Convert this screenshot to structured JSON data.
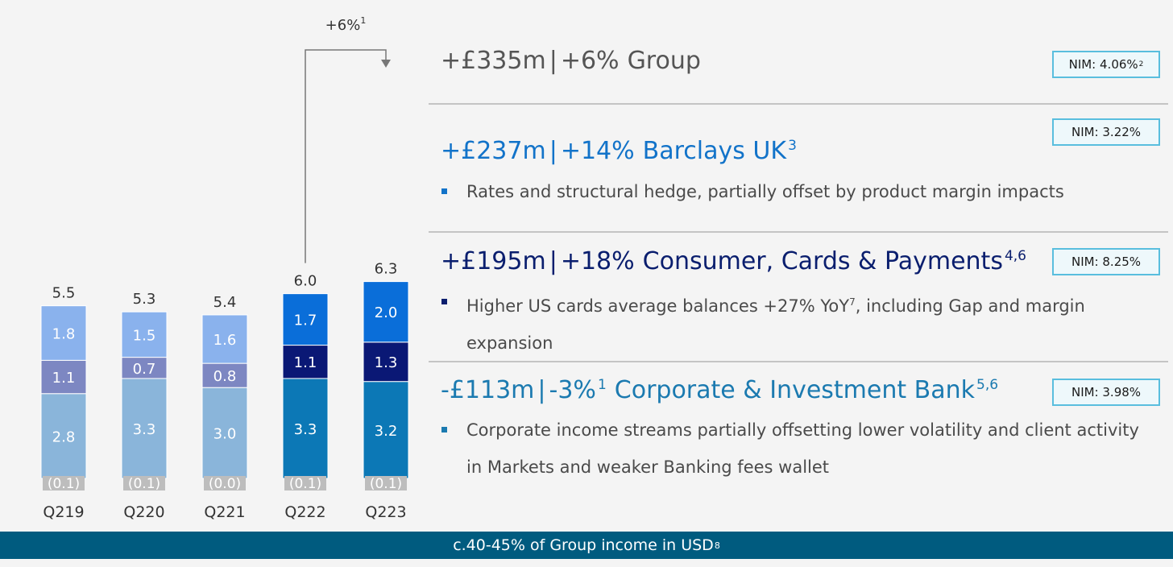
{
  "chart_data": {
    "type": "bar",
    "stacked": true,
    "categories": [
      "Q219",
      "Q220",
      "Q221",
      "Q222",
      "Q223"
    ],
    "totals": [
      "5.5",
      "5.3",
      "5.4",
      "6.0",
      "6.3"
    ],
    "bottom_labels": [
      "(0.1)",
      "(0.1)",
      "(0.0)",
      "(0.1)",
      "(0.1)"
    ],
    "series": [
      {
        "values": [
          2.8,
          3.3,
          3.0,
          3.3,
          3.2
        ],
        "labels": [
          "2.8",
          "3.3",
          "3.0",
          "3.3",
          "3.2"
        ]
      },
      {
        "values": [
          1.1,
          0.7,
          0.8,
          1.1,
          1.3
        ],
        "labels": [
          "1.1",
          "0.7",
          "0.8",
          "1.1",
          "1.3"
        ]
      },
      {
        "values": [
          1.8,
          1.5,
          1.6,
          1.7,
          2.0
        ],
        "labels": [
          "1.8",
          "1.5",
          "1.6",
          "1.7",
          "2.0"
        ]
      }
    ],
    "colors": {
      "past": [
        "#8ab5da",
        "#7d87c2",
        "#8ab2ed"
      ],
      "current": [
        "#0c78b6",
        "#0a1875",
        "#0a6ed9"
      ],
      "bottom_box": "#bdbdbd"
    },
    "growth_annotation": {
      "label": "+6%",
      "sup": "1",
      "from": "Q222",
      "to": "Q223"
    }
  },
  "divisions": {
    "group": {
      "amount": "+£335m",
      "sep": "|",
      "pct": "+6%",
      "name": "Group",
      "nim": "NIM: 4.06%",
      "nim_sup": "2"
    },
    "uk": {
      "amount": "+£237m",
      "sep": "|",
      "pct": "+14%",
      "name": "Barclays UK",
      "sup": "3",
      "nim": "NIM: 3.22%",
      "bullet": "Rates and structural hedge, partially offset by product margin impacts"
    },
    "ccp": {
      "amount": "+£195m",
      "sep": "|",
      "pct": "+18%",
      "name": "Consumer, Cards & Payments",
      "sup": "4,6",
      "nim": "NIM: 8.25%",
      "bullet_a": "Higher US cards average balances +27% YoY",
      "bullet_sup": "7",
      "bullet_b": ", including Gap and margin expansion"
    },
    "cib": {
      "amount": "-£113m",
      "sep": "|",
      "pct": "-3%",
      "pct_sup": "1",
      "name": "Corporate & Investment Bank",
      "sup": "5,6",
      "nim": "NIM: 3.98%",
      "bullet": "Corporate income streams partially offsetting lower volatility and client activity in Markets and weaker Banking fees wallet"
    }
  },
  "footer": {
    "text": "c.40-45% of Group income in USD",
    "sup": "8"
  },
  "colors": {
    "group": "#555555",
    "uk": "#1273c9",
    "ccp": "#0a1e6e",
    "cib": "#1b7ab0",
    "nim_border": "#59bede",
    "footer_bg": "#005b7f"
  }
}
